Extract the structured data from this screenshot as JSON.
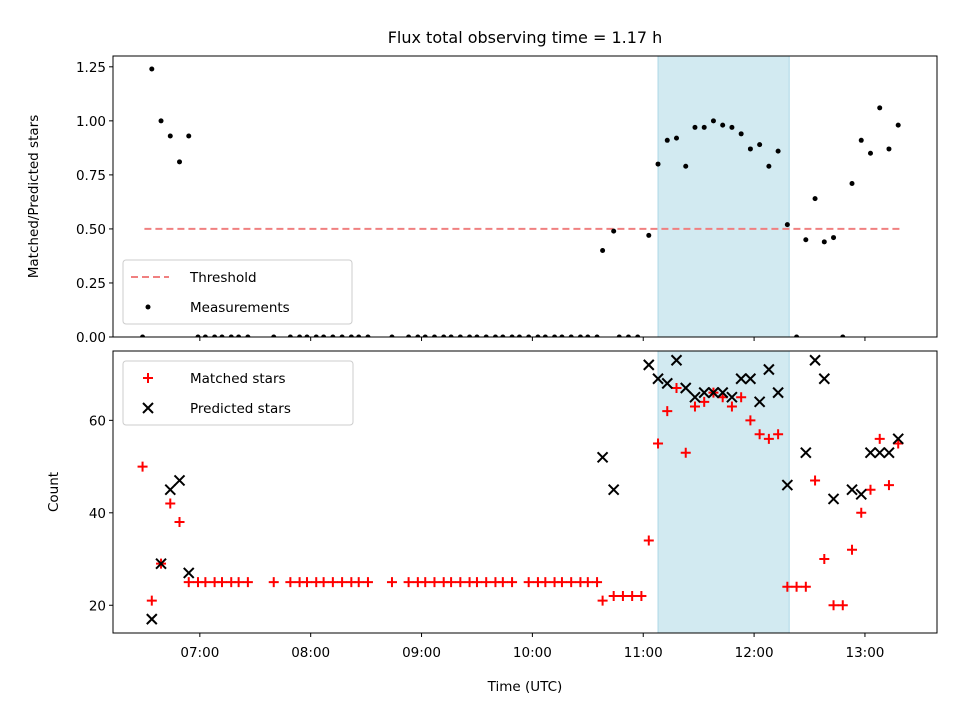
{
  "title": "Flux total observing time = 1.17 h",
  "x_axis": {
    "label": "Time (UTC)",
    "tick_labels": [
      "07:00",
      "08:00",
      "09:00",
      "10:00",
      "11:00",
      "12:00",
      "13:00"
    ]
  },
  "chart_data": [
    {
      "type": "scatter",
      "ylabel": "Matched/Predicted stars",
      "xlim": [
        "06:13",
        "13:39"
      ],
      "ylim": [
        0,
        1.3
      ],
      "yticks": [
        "0.00",
        "0.25",
        "0.50",
        "0.75",
        "1.00",
        "1.25"
      ],
      "shaded_span": {
        "x0": "11:08",
        "x1": "12:19",
        "color": "#add8e6"
      },
      "series": [
        {
          "name": "Threshold",
          "style": "dashed-line",
          "color": "#f08080",
          "points": [
            [
              "06:30",
              0.5
            ],
            [
              "13:20",
              0.5
            ]
          ]
        },
        {
          "name": "Measurements",
          "style": "dot",
          "color": "#000000",
          "points": [
            [
              "06:29",
              0.0
            ],
            [
              "06:34",
              1.24
            ],
            [
              "06:39",
              1.0
            ],
            [
              "06:44",
              0.93
            ],
            [
              "06:49",
              0.81
            ],
            [
              "06:54",
              0.93
            ],
            [
              "06:59",
              0.0
            ],
            [
              "07:03",
              0.0
            ],
            [
              "07:08",
              0.0
            ],
            [
              "07:12",
              0.0
            ],
            [
              "07:17",
              0.0
            ],
            [
              "07:21",
              0.0
            ],
            [
              "07:26",
              0.0
            ],
            [
              "07:40",
              0.0
            ],
            [
              "07:49",
              0.0
            ],
            [
              "07:54",
              0.0
            ],
            [
              "07:58",
              0.0
            ],
            [
              "08:03",
              0.0
            ],
            [
              "08:07",
              0.0
            ],
            [
              "08:12",
              0.0
            ],
            [
              "08:17",
              0.0
            ],
            [
              "08:22",
              0.0
            ],
            [
              "08:26",
              0.0
            ],
            [
              "08:31",
              0.0
            ],
            [
              "08:44",
              0.0
            ],
            [
              "08:53",
              0.0
            ],
            [
              "08:58",
              0.0
            ],
            [
              "09:02",
              0.0
            ],
            [
              "09:07",
              0.0
            ],
            [
              "09:12",
              0.0
            ],
            [
              "09:16",
              0.0
            ],
            [
              "09:21",
              0.0
            ],
            [
              "09:26",
              0.0
            ],
            [
              "09:30",
              0.0
            ],
            [
              "09:35",
              0.0
            ],
            [
              "09:40",
              0.0
            ],
            [
              "09:44",
              0.0
            ],
            [
              "09:49",
              0.0
            ],
            [
              "09:53",
              0.0
            ],
            [
              "09:58",
              0.0
            ],
            [
              "10:03",
              0.0
            ],
            [
              "10:07",
              0.0
            ],
            [
              "10:12",
              0.0
            ],
            [
              "10:16",
              0.0
            ],
            [
              "10:21",
              0.0
            ],
            [
              "10:26",
              0.0
            ],
            [
              "10:30",
              0.0
            ],
            [
              "10:35",
              0.0
            ],
            [
              "10:38",
              0.4
            ],
            [
              "10:44",
              0.49
            ],
            [
              "10:47",
              0.0
            ],
            [
              "10:52",
              0.0
            ],
            [
              "10:57",
              0.0
            ],
            [
              "11:03",
              0.47
            ],
            [
              "11:08",
              0.8
            ],
            [
              "11:13",
              0.91
            ],
            [
              "11:18",
              0.92
            ],
            [
              "11:23",
              0.79
            ],
            [
              "11:28",
              0.97
            ],
            [
              "11:33",
              0.97
            ],
            [
              "11:38",
              1.0
            ],
            [
              "11:43",
              0.98
            ],
            [
              "11:48",
              0.97
            ],
            [
              "11:53",
              0.94
            ],
            [
              "11:58",
              0.87
            ],
            [
              "12:03",
              0.89
            ],
            [
              "12:08",
              0.79
            ],
            [
              "12:13",
              0.86
            ],
            [
              "12:18",
              0.52
            ],
            [
              "12:23",
              0.0
            ],
            [
              "12:28",
              0.45
            ],
            [
              "12:33",
              0.64
            ],
            [
              "12:38",
              0.44
            ],
            [
              "12:43",
              0.46
            ],
            [
              "12:48",
              0.0
            ],
            [
              "12:53",
              0.71
            ],
            [
              "12:58",
              0.91
            ],
            [
              "13:03",
              0.85
            ],
            [
              "13:08",
              1.06
            ],
            [
              "13:13",
              0.87
            ],
            [
              "13:18",
              0.98
            ]
          ]
        }
      ],
      "legend_position": "lower-left"
    },
    {
      "type": "scatter",
      "ylabel": "Count",
      "xlim": [
        "06:13",
        "13:39"
      ],
      "ylim": [
        14,
        75
      ],
      "yticks": [
        "20",
        "40",
        "60"
      ],
      "shaded_span": {
        "x0": "11:08",
        "x1": "12:19",
        "color": "#add8e6"
      },
      "series": [
        {
          "name": "Matched stars",
          "style": "plus",
          "color": "#ff0000",
          "points": [
            [
              "06:29",
              50
            ],
            [
              "06:34",
              21
            ],
            [
              "06:39",
              29
            ],
            [
              "06:44",
              42
            ],
            [
              "06:49",
              38
            ],
            [
              "06:54",
              25
            ],
            [
              "06:59",
              25
            ],
            [
              "07:03",
              25
            ],
            [
              "07:08",
              25
            ],
            [
              "07:12",
              25
            ],
            [
              "07:17",
              25
            ],
            [
              "07:21",
              25
            ],
            [
              "07:26",
              25
            ],
            [
              "07:40",
              25
            ],
            [
              "07:49",
              25
            ],
            [
              "07:54",
              25
            ],
            [
              "07:58",
              25
            ],
            [
              "08:03",
              25
            ],
            [
              "08:07",
              25
            ],
            [
              "08:12",
              25
            ],
            [
              "08:17",
              25
            ],
            [
              "08:22",
              25
            ],
            [
              "08:26",
              25
            ],
            [
              "08:31",
              25
            ],
            [
              "08:44",
              25
            ],
            [
              "08:53",
              25
            ],
            [
              "08:58",
              25
            ],
            [
              "09:02",
              25
            ],
            [
              "09:07",
              25
            ],
            [
              "09:12",
              25
            ],
            [
              "09:16",
              25
            ],
            [
              "09:21",
              25
            ],
            [
              "09:26",
              25
            ],
            [
              "09:30",
              25
            ],
            [
              "09:35",
              25
            ],
            [
              "09:40",
              25
            ],
            [
              "09:44",
              25
            ],
            [
              "09:49",
              25
            ],
            [
              "09:58",
              25
            ],
            [
              "10:03",
              25
            ],
            [
              "10:07",
              25
            ],
            [
              "10:12",
              25
            ],
            [
              "10:16",
              25
            ],
            [
              "10:21",
              25
            ],
            [
              "10:26",
              25
            ],
            [
              "10:30",
              25
            ],
            [
              "10:35",
              25
            ],
            [
              "10:38",
              21
            ],
            [
              "10:44",
              22
            ],
            [
              "10:49",
              22
            ],
            [
              "10:54",
              22
            ],
            [
              "10:59",
              22
            ],
            [
              "11:03",
              34
            ],
            [
              "11:08",
              55
            ],
            [
              "11:13",
              62
            ],
            [
              "11:18",
              67
            ],
            [
              "11:23",
              53
            ],
            [
              "11:28",
              63
            ],
            [
              "11:33",
              64
            ],
            [
              "11:38",
              66
            ],
            [
              "11:43",
              65
            ],
            [
              "11:48",
              63
            ],
            [
              "11:53",
              65
            ],
            [
              "11:58",
              60
            ],
            [
              "12:03",
              57
            ],
            [
              "12:08",
              56
            ],
            [
              "12:13",
              57
            ],
            [
              "12:18",
              24
            ],
            [
              "12:23",
              24
            ],
            [
              "12:28",
              24
            ],
            [
              "12:33",
              47
            ],
            [
              "12:38",
              30
            ],
            [
              "12:43",
              20
            ],
            [
              "12:48",
              20
            ],
            [
              "12:53",
              32
            ],
            [
              "12:58",
              40
            ],
            [
              "13:03",
              45
            ],
            [
              "13:08",
              56
            ],
            [
              "13:13",
              46
            ],
            [
              "13:18",
              55
            ]
          ]
        },
        {
          "name": "Predicted stars",
          "style": "x",
          "color": "#000000",
          "points": [
            [
              "06:34",
              17
            ],
            [
              "06:39",
              29
            ],
            [
              "06:44",
              45
            ],
            [
              "06:49",
              47
            ],
            [
              "06:54",
              27
            ],
            [
              "10:38",
              52
            ],
            [
              "10:44",
              45
            ],
            [
              "11:03",
              72
            ],
            [
              "11:08",
              69
            ],
            [
              "11:13",
              68
            ],
            [
              "11:18",
              73
            ],
            [
              "11:23",
              67
            ],
            [
              "11:28",
              65
            ],
            [
              "11:33",
              66
            ],
            [
              "11:38",
              66
            ],
            [
              "11:43",
              66
            ],
            [
              "11:48",
              65
            ],
            [
              "11:53",
              69
            ],
            [
              "11:58",
              69
            ],
            [
              "12:03",
              64
            ],
            [
              "12:08",
              71
            ],
            [
              "12:13",
              66
            ],
            [
              "12:18",
              46
            ],
            [
              "12:28",
              53
            ],
            [
              "12:33",
              73
            ],
            [
              "12:38",
              69
            ],
            [
              "12:43",
              43
            ],
            [
              "12:53",
              45
            ],
            [
              "12:58",
              44
            ],
            [
              "13:03",
              53
            ],
            [
              "13:08",
              53
            ],
            [
              "13:13",
              53
            ],
            [
              "13:18",
              56
            ]
          ]
        }
      ],
      "legend_position": "upper-left"
    }
  ]
}
